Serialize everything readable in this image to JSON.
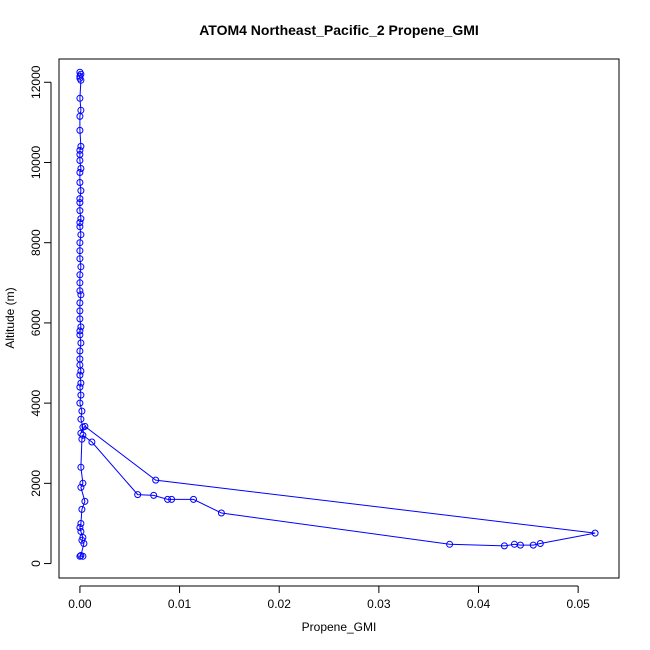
{
  "chart_data": {
    "type": "line",
    "title": "ATOM4 Northeast_Pacific_2 Propene_GMI",
    "xlabel": "Propene_GMI",
    "ylabel": "Altitude (m)",
    "xlim": [
      -0.0021,
      0.0541
    ],
    "ylim": [
      -360,
      12580
    ],
    "xticks": [
      0,
      0.01,
      0.02,
      0.03,
      0.04,
      0.05
    ],
    "xtick_labels": [
      "0.00",
      "0.01",
      "0.02",
      "0.03",
      "0.04",
      "0.05"
    ],
    "yticks": [
      0,
      2000,
      4000,
      6000,
      8000,
      10000,
      12000
    ],
    "ytick_labels": [
      "0",
      "2000",
      "4000",
      "6000",
      "8000",
      "10000",
      "12000"
    ],
    "grid": false,
    "series": [
      {
        "color": "#0000ff",
        "marker": "open-circle",
        "x": [
          0,
          0.0001,
          0,
          0,
          0.0001,
          0,
          0.0001,
          0,
          0,
          0.0001,
          0,
          0,
          0,
          0.0001,
          0,
          0,
          0.0001,
          0,
          0,
          0,
          0.0001,
          0,
          0,
          0.0001,
          0,
          0,
          0,
          0.0001,
          0,
          0,
          0,
          0.0001,
          0,
          0,
          0,
          0.0001,
          0,
          0,
          0.0001,
          0,
          0,
          0,
          0.0001,
          0,
          0.0001,
          0,
          0.0001,
          0,
          0.0002,
          0.0001,
          0.0003,
          0.0001,
          0.0005,
          0.0076,
          0.0517,
          0.0462,
          0.0455,
          0.0442,
          0.0436,
          0.0426,
          0.0371,
          0.0142,
          0.0114,
          0.0092,
          0.0088,
          0.0074,
          0.0058,
          0.0012,
          0.0003,
          0.0002,
          0.0001,
          0.0003,
          0.0001,
          0.0005,
          0.0002,
          0.0001,
          0,
          0.0001,
          0.0003,
          0.0002,
          0.0004,
          0.0001,
          0,
          0.0003
        ],
        "y": [
          12250,
          12200,
          12150,
          12100,
          12050,
          11600,
          11300,
          11150,
          10800,
          10400,
          10300,
          10200,
          10050,
          9850,
          9750,
          9500,
          9300,
          9100,
          9000,
          8800,
          8600,
          8500,
          8400,
          8200,
          8000,
          7800,
          7600,
          7400,
          7200,
          7000,
          6800,
          6700,
          6500,
          6300,
          6100,
          5900,
          5800,
          5700,
          5500,
          5300,
          5100,
          4950,
          4800,
          4700,
          4500,
          4400,
          4200,
          4000,
          3800,
          3600,
          3400,
          3250,
          3420,
          2080,
          760,
          500,
          460,
          460,
          480,
          440,
          480,
          1260,
          1600,
          1600,
          1600,
          1700,
          1720,
          3030,
          3200,
          3100,
          2400,
          2000,
          1900,
          1550,
          1350,
          1000,
          900,
          800,
          650,
          580,
          500,
          200,
          180,
          180
        ]
      }
    ]
  }
}
